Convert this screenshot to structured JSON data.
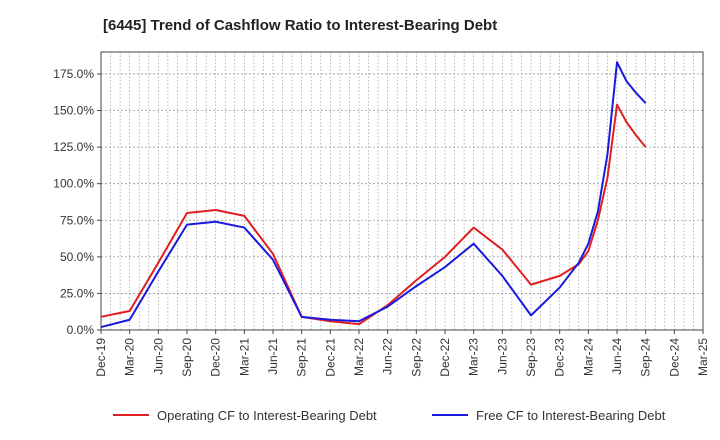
{
  "chart_data": {
    "type": "line",
    "title": "[6445]  Trend of Cashflow Ratio to Interest-Bearing Debt",
    "xlabel": "",
    "ylabel": "",
    "x_ticks": [
      "Dec-19",
      "Mar-20",
      "Jun-20",
      "Sep-20",
      "Dec-20",
      "Mar-21",
      "Jun-21",
      "Sep-21",
      "Dec-21",
      "Mar-22",
      "Jun-22",
      "Sep-22",
      "Dec-22",
      "Mar-23",
      "Jun-23",
      "Sep-23",
      "Dec-23",
      "Mar-24",
      "Jun-24",
      "Sep-24",
      "Dec-24",
      "Mar-25"
    ],
    "y_ticks": [
      "0.0%",
      "25.0%",
      "50.0%",
      "75.0%",
      "100.0%",
      "125.0%",
      "150.0%",
      "175.0%"
    ],
    "ylim": [
      0,
      190
    ],
    "grid": true,
    "legend_position": "bottom",
    "series": [
      {
        "name": "Operating CF to Interest-Bearing Debt",
        "color": "#e02020",
        "points": [
          [
            "Dec-19",
            9
          ],
          [
            "Mar-20",
            13
          ],
          [
            "Jun-20",
            46
          ],
          [
            "Sep-20",
            80
          ],
          [
            "Dec-20",
            82
          ],
          [
            "Mar-21",
            78
          ],
          [
            "Jun-21",
            52
          ],
          [
            "Sep-21",
            9
          ],
          [
            "Dec-21",
            6
          ],
          [
            "Mar-22",
            4
          ],
          [
            "Jun-22",
            17
          ],
          [
            "Sep-22",
            34
          ],
          [
            "Dec-22",
            50
          ],
          [
            "Mar-23",
            70
          ],
          [
            "Jun-23",
            55
          ],
          [
            "Sep-23",
            31
          ],
          [
            "Dec-23",
            37
          ],
          [
            "Feb-24",
            45
          ],
          [
            "Mar-24",
            54
          ],
          [
            "Apr-24",
            75
          ],
          [
            "May-24",
            104
          ],
          [
            "Jun-24",
            154
          ],
          [
            "Jul-24",
            142
          ],
          [
            "Aug-24",
            133
          ],
          [
            "Sep-24",
            125
          ]
        ]
      },
      {
        "name": "Free CF to Interest-Bearing Debt",
        "color": "#1a1adf",
        "points": [
          [
            "Dec-19",
            2
          ],
          [
            "Mar-20",
            7
          ],
          [
            "Jun-20",
            40
          ],
          [
            "Sep-20",
            72
          ],
          [
            "Dec-20",
            74
          ],
          [
            "Mar-21",
            70
          ],
          [
            "Jun-21",
            48
          ],
          [
            "Sep-21",
            9
          ],
          [
            "Dec-21",
            7
          ],
          [
            "Mar-22",
            6
          ],
          [
            "Jun-22",
            16
          ],
          [
            "Sep-22",
            30
          ],
          [
            "Dec-22",
            43
          ],
          [
            "Mar-23",
            59
          ],
          [
            "Jun-23",
            37
          ],
          [
            "Sep-23",
            10
          ],
          [
            "Dec-23",
            29
          ],
          [
            "Feb-24",
            46
          ],
          [
            "Mar-24",
            59
          ],
          [
            "Apr-24",
            81
          ],
          [
            "May-24",
            120
          ],
          [
            "Jun-24",
            183
          ],
          [
            "Jul-24",
            170
          ],
          [
            "Aug-24",
            162
          ],
          [
            "Sep-24",
            155
          ]
        ]
      }
    ]
  }
}
